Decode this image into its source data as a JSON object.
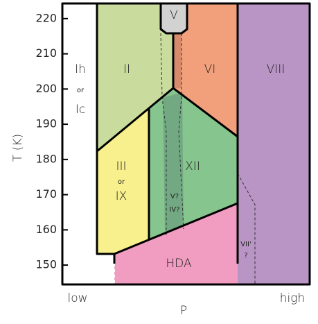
{
  "axis": {
    "y_label": "T (K)",
    "x_label": "P",
    "x_low": "low",
    "x_high": "high",
    "ylim": [
      144.5,
      224.3
    ],
    "yticks": [
      150,
      160,
      170,
      180,
      190,
      200,
      210,
      220
    ]
  },
  "regions": {
    "ih": {
      "lines": [
        "Ih",
        "or",
        "Ic"
      ]
    },
    "ii": {
      "label": "II"
    },
    "v": {
      "label": "V"
    },
    "vi": {
      "label": "VI"
    },
    "viii": {
      "label": "VIII"
    },
    "iii": {
      "lines": [
        "III",
        "or",
        "IX"
      ]
    },
    "xii": {
      "label": "XII",
      "notes": [
        "V?",
        "IV?"
      ]
    },
    "hda": {
      "label": "HDA"
    },
    "vii": {
      "lines": [
        "VII'",
        "?"
      ]
    }
  }
}
